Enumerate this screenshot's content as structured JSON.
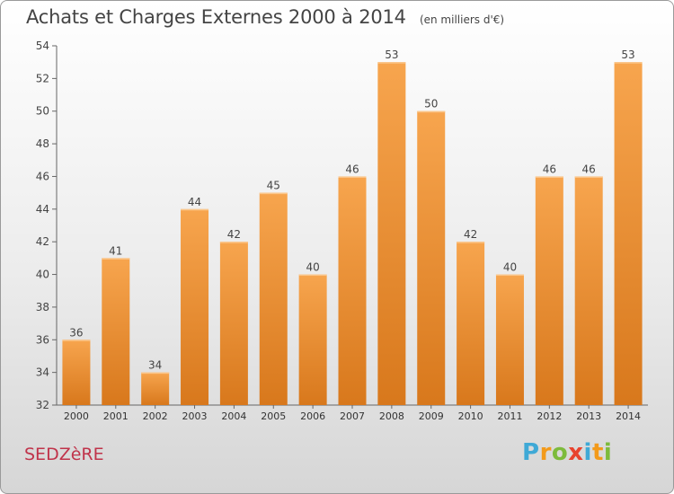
{
  "chart_data": {
    "type": "bar",
    "title": "Achats et Charges Externes 2000 à 2014",
    "subtitle": "(en milliers d'€)",
    "categories": [
      "2000",
      "2001",
      "2002",
      "2003",
      "2004",
      "2005",
      "2006",
      "2007",
      "2008",
      "2009",
      "2010",
      "2011",
      "2012",
      "2013",
      "2014"
    ],
    "values": [
      36,
      41,
      34,
      44,
      42,
      45,
      40,
      46,
      53,
      50,
      42,
      40,
      46,
      46,
      53
    ],
    "ylim": [
      32,
      54
    ],
    "yticks": [
      32,
      34,
      36,
      38,
      40,
      42,
      44,
      46,
      48,
      50,
      52,
      54
    ],
    "grid": false,
    "bar_color_light": "#f7a54e",
    "bar_color_dark": "#d8781c"
  },
  "footer": {
    "commune": "SEDZèRE",
    "logo_letters": [
      "P",
      "r",
      "o",
      "x",
      "i",
      "t",
      "i"
    ],
    "logo_colors": [
      "#3fa9d6",
      "#f39a1a",
      "#7dbb3c",
      "#e8432e",
      "#3fa9d6",
      "#f39a1a",
      "#7dbb3c"
    ]
  }
}
